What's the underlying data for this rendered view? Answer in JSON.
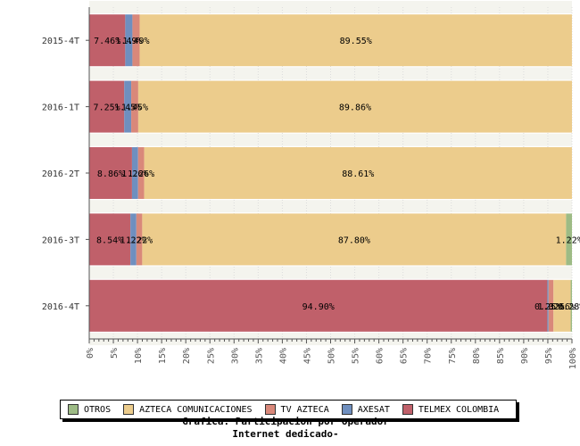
{
  "chart_data": {
    "type": "bar",
    "orientation": "horizontal",
    "stacked": true,
    "percent": true,
    "title_lines": [
      "Grafica: Participacion por operador",
      "Internet dedicado-"
    ],
    "categories": [
      "2015-4T",
      "2016-1T",
      "2016-2T",
      "2016-3T",
      "2016-4T"
    ],
    "xlim": [
      0,
      100
    ],
    "x_ticks": [
      "0%",
      "5%",
      "10%",
      "15%",
      "20%",
      "25%",
      "30%",
      "35%",
      "40%",
      "45%",
      "50%",
      "55%",
      "60%",
      "65%",
      "70%",
      "75%",
      "80%",
      "85%",
      "90%",
      "95%",
      "100%"
    ],
    "series": [
      {
        "name": "TELMEX COLOMBIA",
        "color": "#c0606a",
        "values": [
          7.46,
          7.25,
          8.86,
          8.54,
          94.9
        ],
        "labels": [
          "7.46%",
          "7.25%",
          "8.86%",
          "8.54%",
          "94.90%"
        ]
      },
      {
        "name": "AXESAT",
        "color": "#6f8fbf",
        "values": [
          1.49,
          1.45,
          1.26,
          1.22,
          0.25
        ],
        "labels": [
          "1.49%",
          "1.45%",
          "1.26%",
          "1.22%",
          "0.25%"
        ]
      },
      {
        "name": "TV AZTECA",
        "color": "#d9887a",
        "values": [
          1.49,
          1.45,
          1.26,
          1.22,
          1.02
        ],
        "labels": [
          "1.49%",
          "1.45%",
          "1.26%",
          "1.22%",
          "1.02%"
        ]
      },
      {
        "name": "AZTECA COMUNICACIONES",
        "color": "#eccc8c",
        "values": [
          89.55,
          89.86,
          88.61,
          87.8,
          3.56
        ],
        "labels": [
          "89.55%",
          "89.86%",
          "88.61%",
          "87.80%",
          "3.56%"
        ]
      },
      {
        "name": "OTROS",
        "color": "#9dbb85",
        "values": [
          0,
          0,
          0,
          1.22,
          0.28
        ],
        "labels": [
          "",
          "",
          "",
          "1.22%",
          "0.28%"
        ]
      }
    ],
    "legend": {
      "placement": "bottom",
      "order": [
        "OTROS",
        "AZTECA COMUNICACIONES",
        "TV AZTECA",
        "AXESAT",
        "TELMEX COLOMBIA"
      ]
    },
    "grid": true
  }
}
